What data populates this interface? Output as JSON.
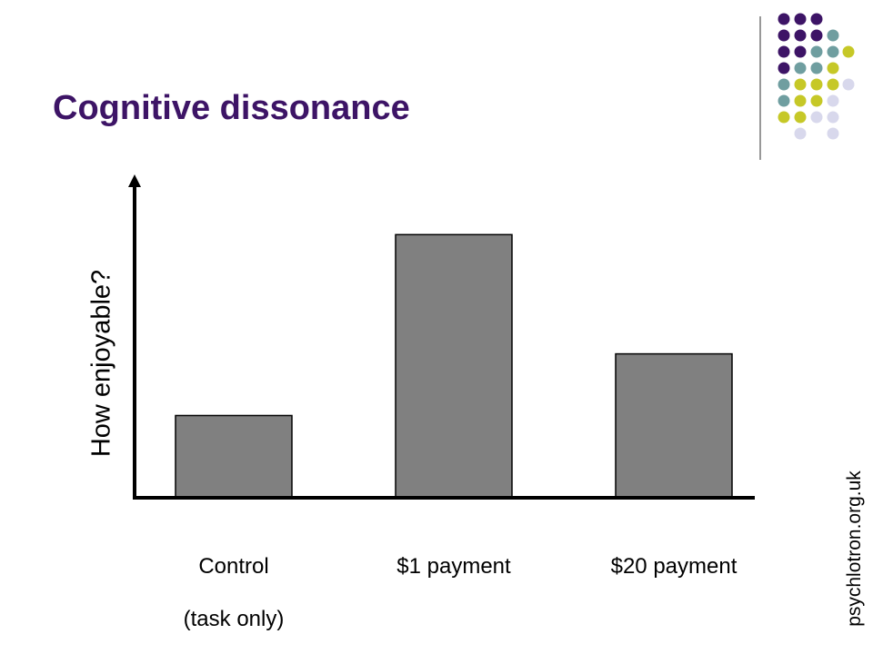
{
  "slide": {
    "title": "Cognitive dissonance",
    "credit": "psychlotron.org.uk",
    "colors": {
      "title": "#3d1466",
      "dot_palette": [
        "#3d1466",
        "#6f9ea0",
        "#c6c827",
        "#d8d8ec"
      ]
    }
  },
  "chart_data": {
    "type": "bar",
    "ylabel": "How enjoyable?",
    "categories": [
      {
        "lines": [
          "Control",
          "(task only)"
        ]
      },
      {
        "lines": [
          "$1 payment"
        ]
      },
      {
        "lines": [
          "$20 payment"
        ]
      }
    ],
    "values": [
      1.0,
      3.2,
      1.75
    ],
    "ylim": [
      0,
      3.8
    ],
    "bar_color": "#808080",
    "grid": false,
    "legend": "none"
  }
}
